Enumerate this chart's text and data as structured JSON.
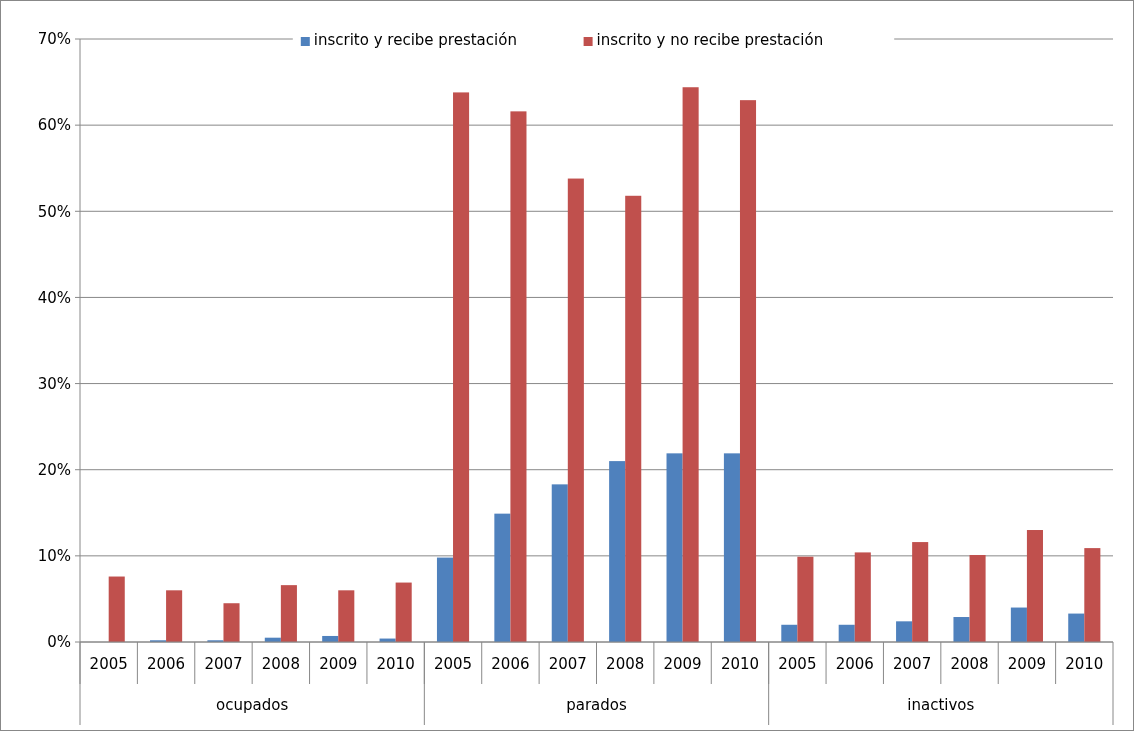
{
  "chart_data": {
    "type": "bar",
    "categories": [
      "2005",
      "2006",
      "2007",
      "2008",
      "2009",
      "2010",
      "2005",
      "2006",
      "2007",
      "2008",
      "2009",
      "2010",
      "2005",
      "2006",
      "2007",
      "2008",
      "2009",
      "2010"
    ],
    "annotations": [
      "ocupados",
      "parados",
      "inactivos"
    ],
    "series": [
      {
        "name": "inscrito y recibe prestación",
        "color": "#4f81bd",
        "values": [
          0,
          0.2,
          0.2,
          0.5,
          0.7,
          0.4,
          9.8,
          14.9,
          18.3,
          21.0,
          21.9,
          21.9,
          2.0,
          2.0,
          2.4,
          2.9,
          4.0,
          3.3
        ]
      },
      {
        "name": "inscrito y no recibe prestación",
        "color": "#c0504d",
        "values": [
          7.6,
          6.0,
          4.5,
          6.6,
          6.0,
          6.9,
          63.8,
          61.6,
          53.8,
          51.8,
          64.4,
          62.9,
          9.9,
          10.4,
          11.6,
          10.1,
          13.0,
          10.9
        ]
      }
    ],
    "ylim": [
      0,
      70
    ],
    "yticks": [
      {
        "value": 0,
        "label": "0%"
      },
      {
        "value": 10,
        "label": "10%"
      },
      {
        "value": 20,
        "label": "20%"
      },
      {
        "value": 30,
        "label": "30%"
      },
      {
        "value": 40,
        "label": "40%"
      },
      {
        "value": 50,
        "label": "50%"
      },
      {
        "value": 60,
        "label": "60%"
      },
      {
        "value": 70,
        "label": "70%"
      }
    ],
    "grid": "y",
    "legend": "top"
  }
}
